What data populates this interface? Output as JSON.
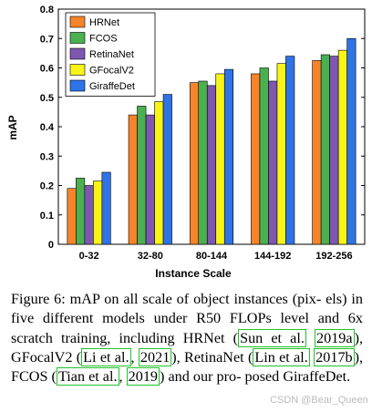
{
  "chart_data": {
    "type": "bar",
    "xlabel": "Instance Scale",
    "ylabel": "mAP",
    "ylim": [
      0,
      0.8
    ],
    "yticks": [
      "0",
      "0.1",
      "0.2",
      "0.3",
      "0.4",
      "0.5",
      "0.6",
      "0.7",
      "0.8"
    ],
    "categories": [
      "0-32",
      "32-80",
      "80-144",
      "144-192",
      "192-256"
    ],
    "legend_position": "top-left",
    "grid": false,
    "series": [
      {
        "name": "HRNet",
        "color": "#f5842a",
        "values": [
          0.19,
          0.44,
          0.55,
          0.58,
          0.625
        ]
      },
      {
        "name": "FCOS",
        "color": "#4bb04f",
        "values": [
          0.225,
          0.47,
          0.555,
          0.6,
          0.645
        ]
      },
      {
        "name": "RetinaNet",
        "color": "#7d57b0",
        "values": [
          0.2,
          0.44,
          0.54,
          0.555,
          0.64
        ]
      },
      {
        "name": "GFocalV2",
        "color": "#f7f416",
        "values": [
          0.215,
          0.485,
          0.58,
          0.615,
          0.66
        ]
      },
      {
        "name": "GiraffeDet",
        "color": "#2f74e6",
        "values": [
          0.245,
          0.51,
          0.595,
          0.64,
          0.7
        ]
      }
    ]
  },
  "caption": [
    {
      "t": "Figure 6:  mAP on all scale of object instances (pix- els) in five different models under R50 FLOPs level and 6x scratch training, including HRNet ("
    },
    {
      "t": "Sun et al.",
      "cite": true
    },
    {
      "t": " "
    },
    {
      "t": "2019a",
      "cite": true
    },
    {
      "t": "), GFocalV2 ("
    },
    {
      "t": "Li et al.",
      "cite": true
    },
    {
      "t": ", "
    },
    {
      "t": "2021",
      "cite": true
    },
    {
      "t": "), RetinaNet ("
    },
    {
      "t": "Lin et al.",
      "cite": true
    },
    {
      "t": " "
    },
    {
      "t": "2017b",
      "cite": true
    },
    {
      "t": "), FCOS ("
    },
    {
      "t": "Tian et al.",
      "cite": true
    },
    {
      "t": ", "
    },
    {
      "t": "2019",
      "cite": true
    },
    {
      "t": ") and our pro- posed GiraffeDet."
    }
  ],
  "watermark": "CSDN @Bear_Queen"
}
